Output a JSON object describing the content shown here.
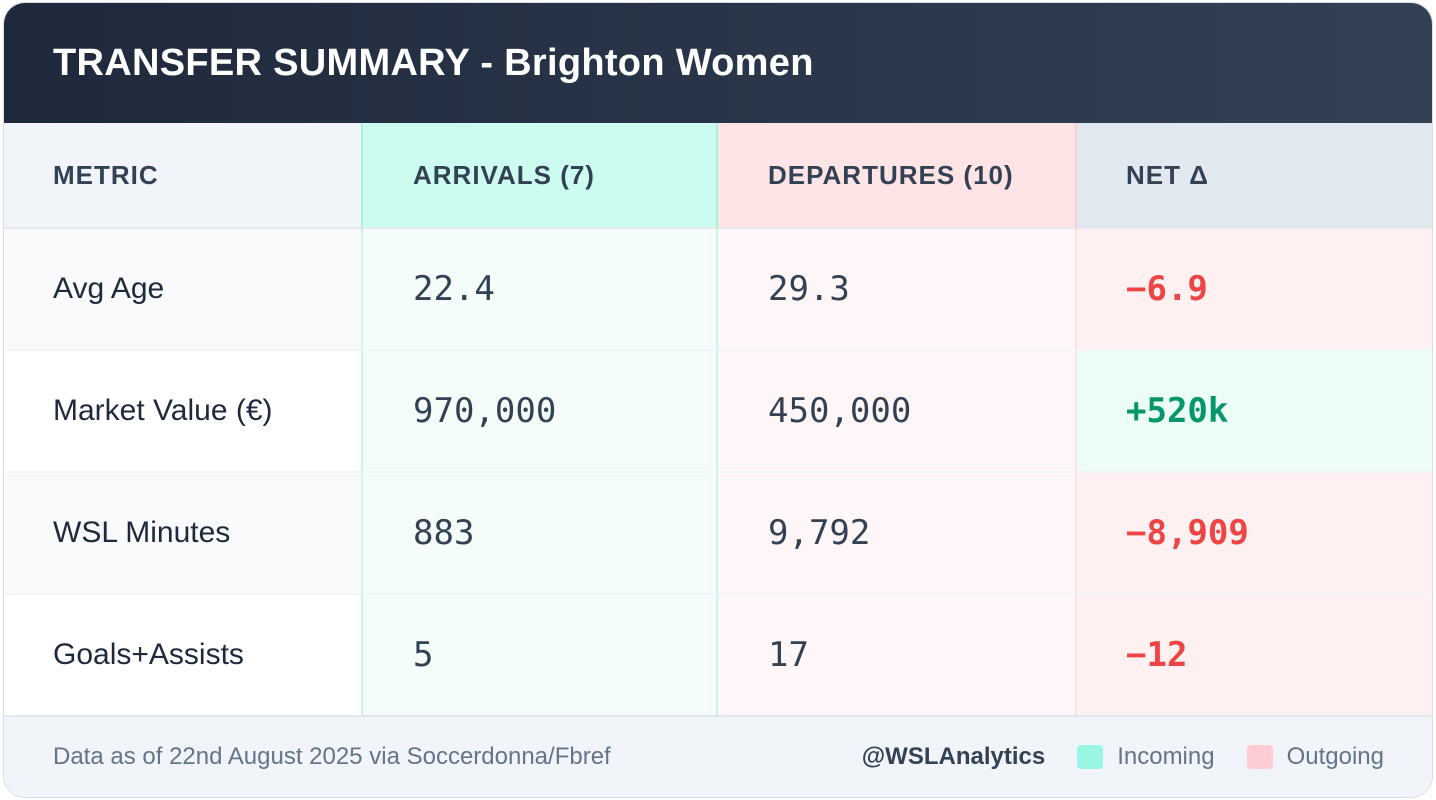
{
  "header": {
    "title": "TRANSFER SUMMARY - Brighton Women"
  },
  "table": {
    "columns": [
      "METRIC",
      "ARRIVALS (7)",
      "DEPARTURES (10)",
      "NET Δ"
    ],
    "rows": [
      {
        "metric": "Avg Age",
        "arrivals": "22.4",
        "departures": "29.3",
        "net": "−6.9"
      },
      {
        "metric": "Market Value (€)",
        "arrivals": "970,000",
        "departures": "450,000",
        "net": "+520k"
      },
      {
        "metric": "WSL Minutes",
        "arrivals": "883",
        "departures": "9,792",
        "net": "−8,909"
      },
      {
        "metric": "Goals+Assists",
        "arrivals": "5",
        "departures": "17",
        "net": "−12"
      }
    ]
  },
  "footer": {
    "source": "Data as of 22nd August 2025 via Soccerdonna/Fbref",
    "handle": "@WSLAnalytics",
    "legend": {
      "incoming": "Incoming",
      "outgoing": "Outgoing"
    }
  },
  "colors": {
    "incoming": "#99f6e4",
    "outgoing": "#fecdd3",
    "negative": "#ef4444",
    "positive": "#059669"
  }
}
